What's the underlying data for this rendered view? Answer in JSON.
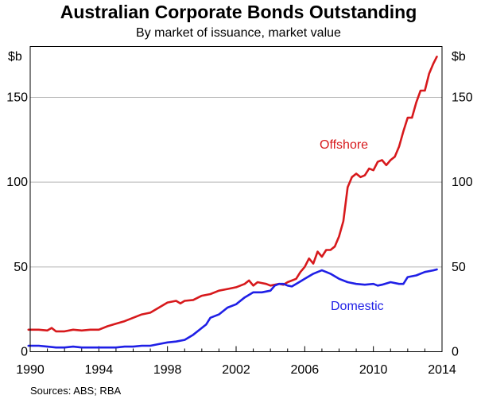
{
  "chart_data": {
    "type": "line",
    "title": "Australian Corporate Bonds Outstanding",
    "subtitle": "By market of issuance, market value",
    "ylabel_left": "$b",
    "ylabel_right": "$b",
    "ylim": [
      0,
      180
    ],
    "xlim": [
      1990,
      2014
    ],
    "y_ticks": [
      0,
      50,
      100,
      150
    ],
    "x_ticks": [
      1990,
      1994,
      1998,
      2002,
      2006,
      2010,
      2014
    ],
    "grid": true,
    "source": "Sources: ABS; RBA",
    "series": [
      {
        "name": "Offshore",
        "color": "#d7191c",
        "points": [
          [
            1989.9,
            13
          ],
          [
            1990.5,
            13
          ],
          [
            1991.0,
            12.5
          ],
          [
            1991.25,
            14
          ],
          [
            1991.5,
            12
          ],
          [
            1992.0,
            12
          ],
          [
            1992.5,
            13
          ],
          [
            1993.0,
            12.5
          ],
          [
            1993.5,
            13
          ],
          [
            1994.0,
            13
          ],
          [
            1994.5,
            15
          ],
          [
            1995.0,
            16.5
          ],
          [
            1995.5,
            18
          ],
          [
            1996.0,
            20
          ],
          [
            1996.5,
            22
          ],
          [
            1997.0,
            23
          ],
          [
            1997.5,
            26
          ],
          [
            1998.0,
            29
          ],
          [
            1998.5,
            30
          ],
          [
            1998.75,
            28.5
          ],
          [
            1999.0,
            30
          ],
          [
            1999.5,
            30.5
          ],
          [
            2000.0,
            33
          ],
          [
            2000.5,
            34
          ],
          [
            2001.0,
            36
          ],
          [
            2001.5,
            37
          ],
          [
            2002.0,
            38
          ],
          [
            2002.25,
            39
          ],
          [
            2002.5,
            40
          ],
          [
            2002.75,
            42
          ],
          [
            2003.0,
            39
          ],
          [
            2003.25,
            41
          ],
          [
            2003.5,
            40.5
          ],
          [
            2003.75,
            40
          ],
          [
            2004.0,
            39
          ],
          [
            2004.5,
            40
          ],
          [
            2004.75,
            39.5
          ],
          [
            2005.0,
            41
          ],
          [
            2005.5,
            43
          ],
          [
            2005.75,
            47
          ],
          [
            2006.0,
            50
          ],
          [
            2006.25,
            55
          ],
          [
            2006.5,
            52
          ],
          [
            2006.75,
            59
          ],
          [
            2007.0,
            56
          ],
          [
            2007.25,
            60
          ],
          [
            2007.5,
            60
          ],
          [
            2007.75,
            62
          ],
          [
            2008.0,
            68
          ],
          [
            2008.25,
            77
          ],
          [
            2008.5,
            97
          ],
          [
            2008.75,
            103
          ],
          [
            2009.0,
            105
          ],
          [
            2009.25,
            103
          ],
          [
            2009.5,
            104
          ],
          [
            2009.75,
            108
          ],
          [
            2010.0,
            107
          ],
          [
            2010.25,
            112
          ],
          [
            2010.5,
            113
          ],
          [
            2010.75,
            110
          ],
          [
            2011.0,
            113
          ],
          [
            2011.25,
            115
          ],
          [
            2011.5,
            121
          ],
          [
            2011.75,
            130
          ],
          [
            2012.0,
            138
          ],
          [
            2012.25,
            138
          ],
          [
            2012.5,
            147
          ],
          [
            2012.75,
            154
          ],
          [
            2013.0,
            154
          ],
          [
            2013.25,
            164
          ],
          [
            2013.5,
            170
          ],
          [
            2013.7,
            174
          ]
        ]
      },
      {
        "name": "Domestic",
        "color": "#1f1fe6",
        "points": [
          [
            1989.9,
            3.5
          ],
          [
            1990.5,
            3.5
          ],
          [
            1991.0,
            3
          ],
          [
            1991.5,
            2.5
          ],
          [
            1992.0,
            2.5
          ],
          [
            1992.5,
            3
          ],
          [
            1993.0,
            2.5
          ],
          [
            1993.5,
            2.5
          ],
          [
            1994.0,
            2.5
          ],
          [
            1994.5,
            2.5
          ],
          [
            1995.0,
            2.5
          ],
          [
            1995.5,
            3
          ],
          [
            1996.0,
            3
          ],
          [
            1996.5,
            3.5
          ],
          [
            1997.0,
            3.5
          ],
          [
            1997.5,
            4.5
          ],
          [
            1998.0,
            5.5
          ],
          [
            1998.5,
            6
          ],
          [
            1999.0,
            7
          ],
          [
            1999.5,
            10
          ],
          [
            2000.0,
            14
          ],
          [
            2000.25,
            16
          ],
          [
            2000.5,
            20
          ],
          [
            2001.0,
            22
          ],
          [
            2001.5,
            26
          ],
          [
            2002.0,
            28
          ],
          [
            2002.5,
            32
          ],
          [
            2003.0,
            35
          ],
          [
            2003.5,
            35
          ],
          [
            2004.0,
            36
          ],
          [
            2004.25,
            39
          ],
          [
            2004.5,
            40
          ],
          [
            2004.75,
            40
          ],
          [
            2005.0,
            39
          ],
          [
            2005.25,
            38.5
          ],
          [
            2005.5,
            40
          ],
          [
            2006.0,
            43
          ],
          [
            2006.5,
            46
          ],
          [
            2006.75,
            47
          ],
          [
            2007.0,
            48
          ],
          [
            2007.25,
            47
          ],
          [
            2007.5,
            46
          ],
          [
            2008.0,
            43
          ],
          [
            2008.5,
            41
          ],
          [
            2009.0,
            40
          ],
          [
            2009.5,
            39.5
          ],
          [
            2010.0,
            40
          ],
          [
            2010.25,
            39
          ],
          [
            2010.5,
            39.5
          ],
          [
            2011.0,
            41
          ],
          [
            2011.5,
            40
          ],
          [
            2011.75,
            40
          ],
          [
            2012.0,
            44
          ],
          [
            2012.5,
            45
          ],
          [
            2013.0,
            47
          ],
          [
            2013.5,
            48
          ],
          [
            2013.7,
            48.5
          ]
        ]
      }
    ]
  }
}
